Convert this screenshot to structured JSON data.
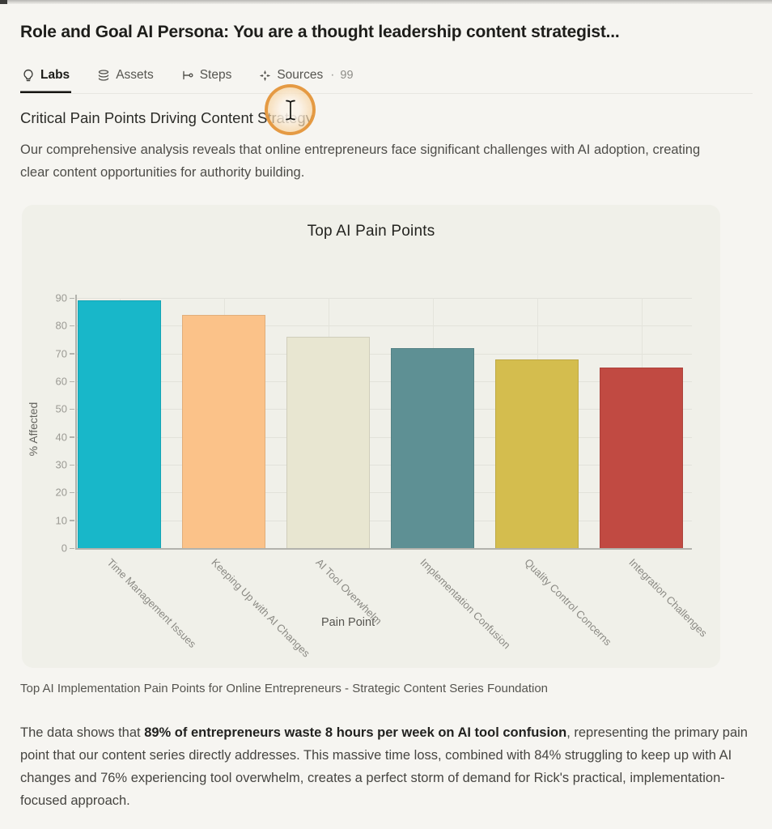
{
  "page": {
    "title": "Role and Goal AI Persona: You are a thought leadership content strategist...",
    "tabs": [
      {
        "label": "Labs",
        "icon": "lightbulb-icon",
        "active": true
      },
      {
        "label": "Assets",
        "icon": "layers-icon",
        "active": false
      },
      {
        "label": "Steps",
        "icon": "branch-icon",
        "active": false
      },
      {
        "label": "Sources",
        "icon": "sparkle-icon",
        "active": false,
        "badge_separator": "·",
        "badge": "99"
      }
    ],
    "section": {
      "heading": "Critical Pain Points Driving Content Strategy",
      "intro": "Our comprehensive analysis reveals that online entrepreneurs face significant challenges with AI adoption, creating clear content opportunities for authority building.",
      "chart_caption": "Top AI Implementation Pain Points for Online Entrepreneurs - Strategic Content Series Foundation",
      "analysis": {
        "prefix": "The data shows that ",
        "bold": "89% of entrepreneurs waste 8 hours per week on AI tool confusion",
        "suffix": ", representing the primary pain point that our content series directly addresses. This massive time loss, combined with 84% struggling to keep up with AI changes and 76% experiencing tool overwhelm, creates a perfect storm of demand for Rick's practical, implementation-focused approach."
      }
    },
    "cursor": {
      "type": "text-ibeam",
      "highlight_ring_color": "#e4973d"
    }
  },
  "chart_data": {
    "type": "bar",
    "title": "Top AI Pain Points",
    "categories": [
      "Time Management Issues",
      "Keeping Up with AI Changes",
      "AI Tool Overwhelm",
      "Implementation Confusion",
      "Quality Control Concerns",
      "Integration Challenges"
    ],
    "values": [
      89,
      84,
      76,
      72,
      68,
      65
    ],
    "colors": [
      "#18b7c9",
      "#fbc289",
      "#e8e6d1",
      "#5e9094",
      "#d4bd4e",
      "#c14a42"
    ],
    "xlabel": "Pain Point",
    "ylabel": "% Affected",
    "ylim": [
      0,
      90
    ],
    "ytick_step": 10,
    "grid": true,
    "legend": false,
    "background": "#f0f0e9"
  }
}
